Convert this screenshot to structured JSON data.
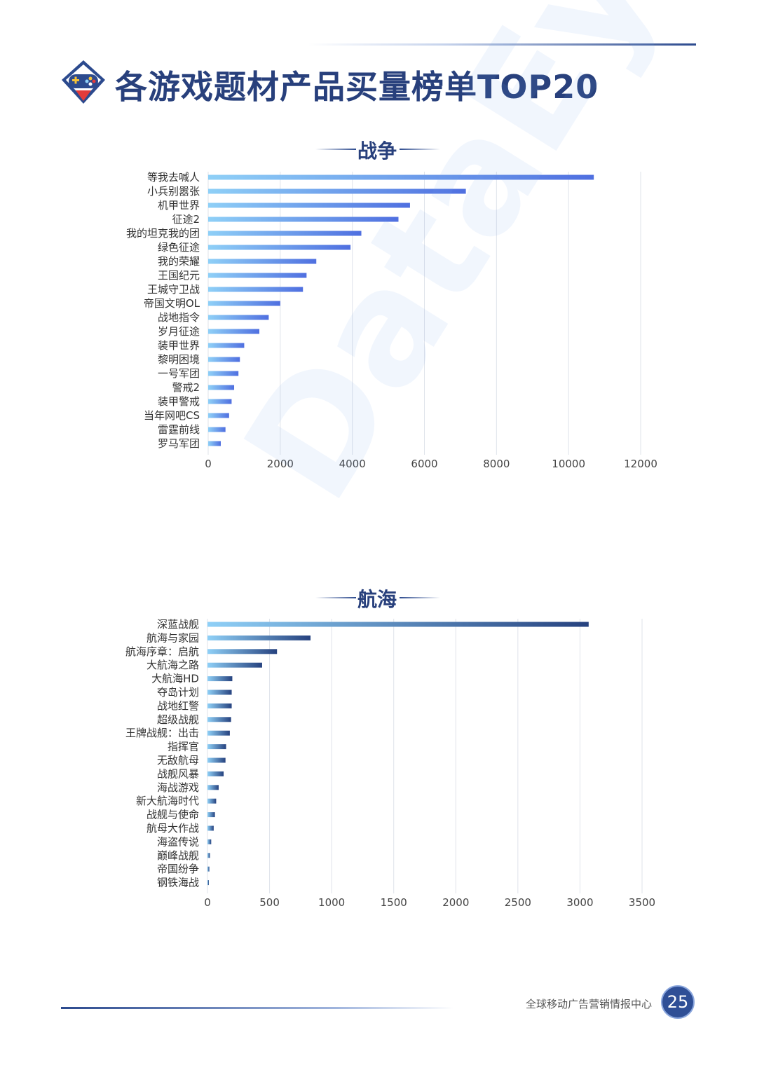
{
  "page": {
    "title": "各游戏题材产品买量榜单TOP20",
    "footer": "全球移动广告营销情报中心",
    "page_number": "25",
    "watermark": "DataEye"
  },
  "colors": {
    "title": "#28407c",
    "accent": "#2f4f96",
    "bar_start": "#8fd0f7",
    "bar_end_war": "#4f6fe0",
    "bar_end_sea": "#26427f"
  },
  "chart_data": [
    {
      "type": "bar",
      "orientation": "horizontal",
      "title": "战争",
      "categories": [
        "等我去喊人",
        "小兵别嚣张",
        "机甲世界",
        "征途2",
        "我的坦克我的团",
        "绿色征途",
        "我的荣耀",
        "王国纪元",
        "王城守卫战",
        "帝国文明OL",
        "战地指令",
        "岁月征途",
        "装甲世界",
        "黎明困境",
        "一号军团",
        "警戒2",
        "装甲警戒",
        "当年网吧CS",
        "雷霆前线",
        "罗马军团"
      ],
      "values": [
        10700,
        7150,
        5600,
        5280,
        4250,
        3950,
        3000,
        2730,
        2630,
        2000,
        1680,
        1420,
        1000,
        880,
        840,
        720,
        650,
        580,
        480,
        350
      ],
      "xlim": [
        0,
        12000
      ],
      "xticks": [
        0,
        2000,
        4000,
        6000,
        8000,
        10000,
        12000
      ],
      "grid": true
    },
    {
      "type": "bar",
      "orientation": "horizontal",
      "title": "航海",
      "categories": [
        "深蓝战舰",
        "航海与家园",
        "航海序章：启航",
        "大航海之路",
        "大航海HD",
        "夺岛计划",
        "战地红警",
        "超级战舰",
        "王牌战舰：出击",
        "指挥官",
        "无敌航母",
        "战舰风暴",
        "海战游戏",
        "新大航海时代",
        "战舰与使命",
        "航母大作战",
        "海盗传说",
        "巅峰战舰",
        "帝国纷争",
        "钢铁海战"
      ],
      "values": [
        3070,
        830,
        560,
        440,
        200,
        195,
        195,
        190,
        180,
        150,
        145,
        130,
        90,
        70,
        60,
        50,
        30,
        20,
        15,
        10
      ],
      "xlim": [
        0,
        3500
      ],
      "xticks": [
        0,
        500,
        1000,
        1500,
        2000,
        2500,
        3000,
        3500
      ],
      "grid": true
    }
  ]
}
